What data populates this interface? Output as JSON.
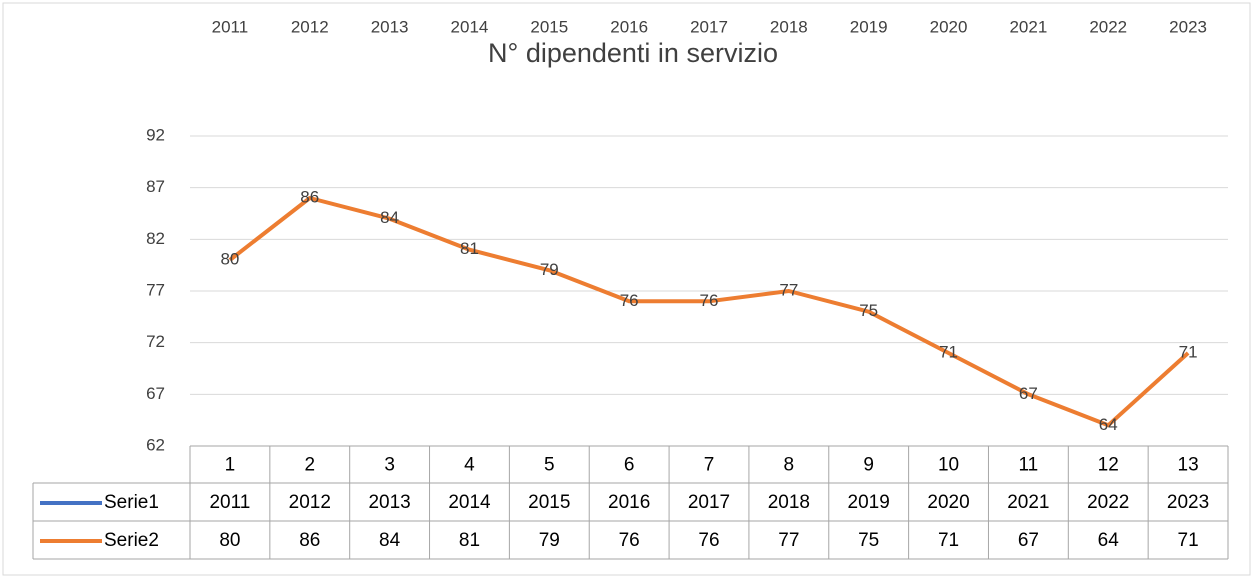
{
  "chart_data": {
    "type": "line",
    "title": "N° dipendenti in servizio",
    "categories": [
      "1",
      "2",
      "3",
      "4",
      "5",
      "6",
      "7",
      "8",
      "9",
      "10",
      "11",
      "12",
      "13"
    ],
    "series": [
      {
        "name": "Serie1",
        "color": "#4472c4",
        "values": [
          2011,
          2012,
          2013,
          2014,
          2015,
          2016,
          2017,
          2018,
          2019,
          2020,
          2021,
          2022,
          2023
        ]
      },
      {
        "name": "Serie2",
        "color": "#ed7d31",
        "values": [
          80,
          86,
          84,
          81,
          79,
          76,
          76,
          77,
          75,
          71,
          67,
          64,
          71
        ]
      }
    ],
    "ylim": [
      62,
      92
    ],
    "yticks": [
      62,
      67,
      72,
      77,
      82,
      87,
      92
    ],
    "grid": true
  }
}
